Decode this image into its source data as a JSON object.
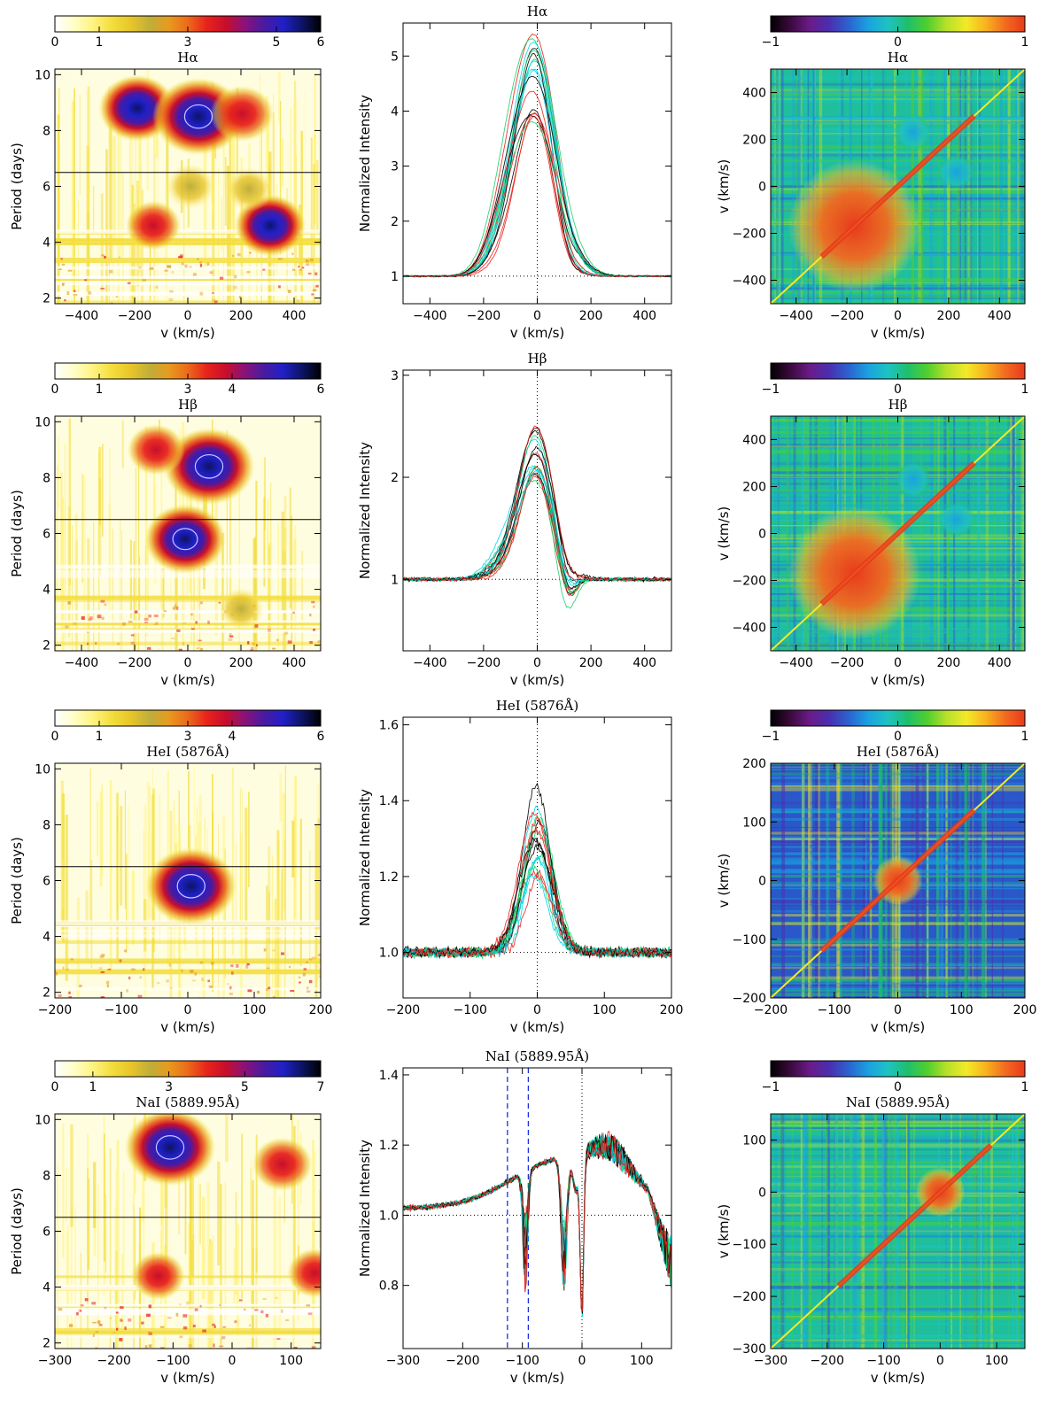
{
  "colors": {
    "periodogram_scale": [
      "#ffffff",
      "#fffec8",
      "#fff380",
      "#f3dd3c",
      "#e8c52a",
      "#bfae3a",
      "#e89a1e",
      "#ec6a1a",
      "#e8231c",
      "#c80e2c",
      "#8a127a",
      "#4a1aa0",
      "#2020c8",
      "#0d1466",
      "#000000"
    ],
    "correlation_scale": [
      "#000000",
      "#3b0a3c",
      "#6a1b88",
      "#4a2fb0",
      "#2b63d0",
      "#1aa2e0",
      "#1ec3c3",
      "#1ebf6c",
      "#4fcf2e",
      "#b7e02a",
      "#f2ea28",
      "#f9b21e",
      "#f26b1f",
      "#e83a1c"
    ],
    "profile_series": [
      "#000000",
      "#e8231c",
      "#16d36c",
      "#00d7e8",
      "#555555"
    ],
    "marker_line": "#1a2ee0"
  },
  "rows": [
    {
      "line": "Hα",
      "periodogram": {
        "title": "Hα",
        "ylabel": "Period (days)",
        "xlabel": "v (km/s)",
        "xticks": [
          "−400",
          "−200",
          "0",
          "200",
          "400"
        ],
        "yticks": [
          "2",
          "4",
          "6",
          "8",
          "10"
        ],
        "xlim": [
          -500,
          500
        ],
        "ylim": [
          1.8,
          10.2
        ],
        "colorbar_ticks": [
          "0",
          "1",
          "3",
          "5",
          "6"
        ],
        "colorbar_max": 6,
        "marked_period": 6.5
      },
      "profile": {
        "title": "Hα",
        "ylabel": "Normalized Intensity",
        "xlabel": "v (km/s)",
        "xticks": [
          "−400",
          "−200",
          "0",
          "200",
          "400"
        ],
        "yticks": [
          "1",
          "2",
          "3",
          "4",
          "5"
        ],
        "xlim": [
          -500,
          500
        ],
        "ylim": [
          0.5,
          5.6
        ]
      },
      "correlation": {
        "title": "Hα",
        "ylabel": "v (km/s)",
        "xlabel": "v (km/s)",
        "xticks": [
          "−400",
          "−200",
          "0",
          "200",
          "400"
        ],
        "yticks": [
          "−400",
          "−200",
          "0",
          "200",
          "400"
        ],
        "lim": [
          -500,
          500
        ],
        "colorbar_ticks": [
          "−1",
          "0",
          "1"
        ]
      }
    },
    {
      "line": "Hβ",
      "periodogram": {
        "title": "Hβ",
        "ylabel": "Period (days)",
        "xlabel": "v (km/s)",
        "xticks": [
          "−400",
          "−200",
          "0",
          "200",
          "400"
        ],
        "yticks": [
          "2",
          "4",
          "6",
          "8",
          "10"
        ],
        "xlim": [
          -500,
          500
        ],
        "ylim": [
          1.8,
          10.2
        ],
        "colorbar_ticks": [
          "0",
          "1",
          "3",
          "4",
          "6"
        ],
        "colorbar_max": 6,
        "marked_period": 6.5
      },
      "profile": {
        "title": "Hβ",
        "ylabel": "Normalized Intensity",
        "xlabel": "v (km/s)",
        "xticks": [
          "−400",
          "−200",
          "0",
          "200",
          "400"
        ],
        "yticks": [
          "1",
          "2",
          "3"
        ],
        "xlim": [
          -500,
          500
        ],
        "ylim": [
          0.3,
          3.05
        ]
      },
      "correlation": {
        "title": "Hβ",
        "ylabel": "v (km/s)",
        "xlabel": "v (km/s)",
        "xticks": [
          "−400",
          "−200",
          "0",
          "200",
          "400"
        ],
        "yticks": [
          "−400",
          "−200",
          "0",
          "200",
          "400"
        ],
        "lim": [
          -500,
          500
        ],
        "colorbar_ticks": [
          "−1",
          "0",
          "1"
        ]
      }
    },
    {
      "line": "HeI (5876Å)",
      "periodogram": {
        "title": "HeI (5876Å)",
        "ylabel": "Period (days)",
        "xlabel": "v (km/s)",
        "xticks": [
          "−200",
          "−100",
          "0",
          "100",
          "200"
        ],
        "yticks": [
          "2",
          "4",
          "6",
          "8",
          "10"
        ],
        "xlim": [
          -200,
          200
        ],
        "ylim": [
          1.8,
          10.2
        ],
        "colorbar_ticks": [
          "0",
          "1",
          "3",
          "4",
          "6"
        ],
        "colorbar_max": 6,
        "marked_period": 6.5
      },
      "profile": {
        "title": "HeI (5876Å)",
        "ylabel": "Normalized Intensity",
        "xlabel": "v (km/s)",
        "xticks": [
          "−200",
          "−100",
          "0",
          "100",
          "200"
        ],
        "yticks": [
          "1.0",
          "1.2",
          "1.4",
          "1.6"
        ],
        "xlim": [
          -200,
          200
        ],
        "ylim": [
          0.88,
          1.62
        ]
      },
      "correlation": {
        "title": "HeI (5876Å)",
        "ylabel": "v (km/s)",
        "xlabel": "v (km/s)",
        "xticks": [
          "−200",
          "−100",
          "0",
          "100",
          "200"
        ],
        "yticks": [
          "−200",
          "−100",
          "0",
          "100",
          "200"
        ],
        "lim": [
          -200,
          200
        ],
        "colorbar_ticks": [
          "−1",
          "0",
          "1"
        ]
      }
    },
    {
      "line": "NaI (5889.95Å)",
      "periodogram": {
        "title": "NaI (5889.95Å)",
        "ylabel": "Period (days)",
        "xlabel": "v (km/s)",
        "xticks": [
          "−300",
          "−200",
          "−100",
          "0",
          "100"
        ],
        "yticks": [
          "2",
          "4",
          "6",
          "8",
          "10"
        ],
        "xlim": [
          -300,
          150
        ],
        "ylim": [
          1.8,
          10.2
        ],
        "colorbar_ticks": [
          "0",
          "1",
          "3",
          "5",
          "7"
        ],
        "colorbar_max": 7,
        "marked_period": 6.5
      },
      "profile": {
        "title": "NaI (5889.95Å)",
        "ylabel": "Normalized Intensity",
        "xlabel": "v (km/s)",
        "xticks": [
          "−300",
          "−200",
          "−100",
          "0",
          "100"
        ],
        "yticks": [
          "0.8",
          "1.0",
          "1.2",
          "1.4"
        ],
        "xlim": [
          -300,
          150
        ],
        "ylim": [
          0.62,
          1.42
        ],
        "marker_velocities": [
          -125,
          -90
        ]
      },
      "correlation": {
        "title": "NaI (5889.95Å)",
        "ylabel": "v (km/s)",
        "xlabel": "v (km/s)",
        "xticks": [
          "−300",
          "−200",
          "−100",
          "0",
          "100"
        ],
        "yticks": [
          "−300",
          "−200",
          "−100",
          "0",
          "100"
        ],
        "lim": [
          -300,
          150
        ],
        "colorbar_ticks": [
          "−1",
          "0",
          "1"
        ]
      }
    }
  ],
  "chart_data": [
    {
      "type": "heatmap",
      "title": "Hα",
      "xlabel": "v (km/s)",
      "ylabel": "Period (days)",
      "xlim": [
        -500,
        500
      ],
      "ylim": [
        1.8,
        10.2
      ],
      "colorbar": [
        0,
        6
      ],
      "features": [
        {
          "v": -190,
          "period": 8.8,
          "power": 4.6
        },
        {
          "v": 40,
          "period": 8.5,
          "power": 6.0
        },
        {
          "v": 205,
          "period": 8.6,
          "power": 3.2
        },
        {
          "v": 310,
          "period": 4.6,
          "power": 4.0
        },
        {
          "v": 10,
          "period": 6.0,
          "power": 1.8
        },
        {
          "v": 230,
          "period": 5.9,
          "power": 1.6
        },
        {
          "v": -130,
          "period": 4.6,
          "power": 2.4
        }
      ],
      "marked_period": 6.5
    },
    {
      "type": "line",
      "title": "Hα",
      "xlabel": "v (km/s)",
      "ylabel": "Normalized Intensity",
      "xlim": [
        -500,
        500
      ],
      "ylim": [
        0.5,
        5.6
      ],
      "continuum": 1,
      "peak_range": [
        3.6,
        5.3
      ],
      "peak_velocity": -10
    },
    {
      "type": "heatmap",
      "title": "Hα",
      "xlabel": "v (km/s)",
      "ylabel": "v (km/s)",
      "xlim": [
        -500,
        500
      ],
      "ylim": [
        -500,
        500
      ],
      "colorbar": [
        -1,
        1
      ]
    },
    {
      "type": "heatmap",
      "title": "Hβ",
      "xlabel": "v (km/s)",
      "ylabel": "Period (days)",
      "xlim": [
        -500,
        500
      ],
      "ylim": [
        1.8,
        10.2
      ],
      "colorbar": [
        0,
        6
      ],
      "features": [
        {
          "v": 80,
          "period": 8.4,
          "power": 6.0
        },
        {
          "v": -10,
          "period": 5.8,
          "power": 5.0
        },
        {
          "v": -120,
          "period": 9.0,
          "power": 2.6
        },
        {
          "v": 200,
          "period": 3.3,
          "power": 1.4
        }
      ],
      "marked_period": 6.5
    },
    {
      "type": "line",
      "title": "Hβ",
      "xlabel": "v (km/s)",
      "ylabel": "Normalized Intensity",
      "xlim": [
        -500,
        500
      ],
      "ylim": [
        0.3,
        3.05
      ],
      "continuum": 1,
      "peak_range": [
        1.9,
        2.5
      ],
      "peak_velocity": -5
    },
    {
      "type": "heatmap",
      "title": "Hβ",
      "xlabel": "v (km/s)",
      "ylabel": "v (km/s)",
      "xlim": [
        -500,
        500
      ],
      "ylim": [
        -500,
        500
      ],
      "colorbar": [
        -1,
        1
      ]
    },
    {
      "type": "heatmap",
      "title": "HeI (5876Å)",
      "xlabel": "v (km/s)",
      "ylabel": "Period (days)",
      "xlim": [
        -200,
        200
      ],
      "ylim": [
        1.8,
        10.2
      ],
      "colorbar": [
        0,
        6
      ],
      "features": [
        {
          "v": 5,
          "period": 5.8,
          "power": 6.0
        }
      ],
      "marked_period": 6.5
    },
    {
      "type": "line",
      "title": "HeI (5876Å)",
      "xlabel": "v (km/s)",
      "ylabel": "Normalized Intensity",
      "xlim": [
        -200,
        200
      ],
      "ylim": [
        0.88,
        1.62
      ],
      "continuum": 1.0,
      "peak_range": [
        1.2,
        1.44
      ],
      "peak_velocity": 0
    },
    {
      "type": "heatmap",
      "title": "HeI (5876Å)",
      "xlabel": "v (km/s)",
      "ylabel": "v (km/s)",
      "xlim": [
        -200,
        200
      ],
      "ylim": [
        -200,
        200
      ],
      "colorbar": [
        -1,
        1
      ]
    },
    {
      "type": "heatmap",
      "title": "NaI (5889.95Å)",
      "xlabel": "v (km/s)",
      "ylabel": "Period (days)",
      "xlim": [
        -300,
        150
      ],
      "ylim": [
        1.8,
        10.2
      ],
      "colorbar": [
        0,
        7
      ],
      "features": [
        {
          "v": -105,
          "period": 9.0,
          "power": 7.0
        },
        {
          "v": 85,
          "period": 8.4,
          "power": 3.4
        },
        {
          "v": -125,
          "period": 4.4,
          "power": 2.6
        },
        {
          "v": 140,
          "period": 4.5,
          "power": 2.8
        }
      ],
      "marked_period": 6.5
    },
    {
      "type": "line",
      "title": "NaI (5889.95Å)",
      "xlabel": "v (km/s)",
      "ylabel": "Normalized Intensity",
      "xlim": [
        -300,
        150
      ],
      "ylim": [
        0.62,
        1.42
      ],
      "continuum": 1.0,
      "absorption_minimum": {
        "v": 0,
        "intensity": 0.72
      },
      "marked_velocities": [
        -125,
        -90
      ]
    },
    {
      "type": "heatmap",
      "title": "NaI (5889.95Å)",
      "xlabel": "v (km/s)",
      "ylabel": "v (km/s)",
      "xlim": [
        -300,
        150
      ],
      "ylim": [
        -300,
        150
      ],
      "colorbar": [
        -1,
        1
      ]
    }
  ]
}
